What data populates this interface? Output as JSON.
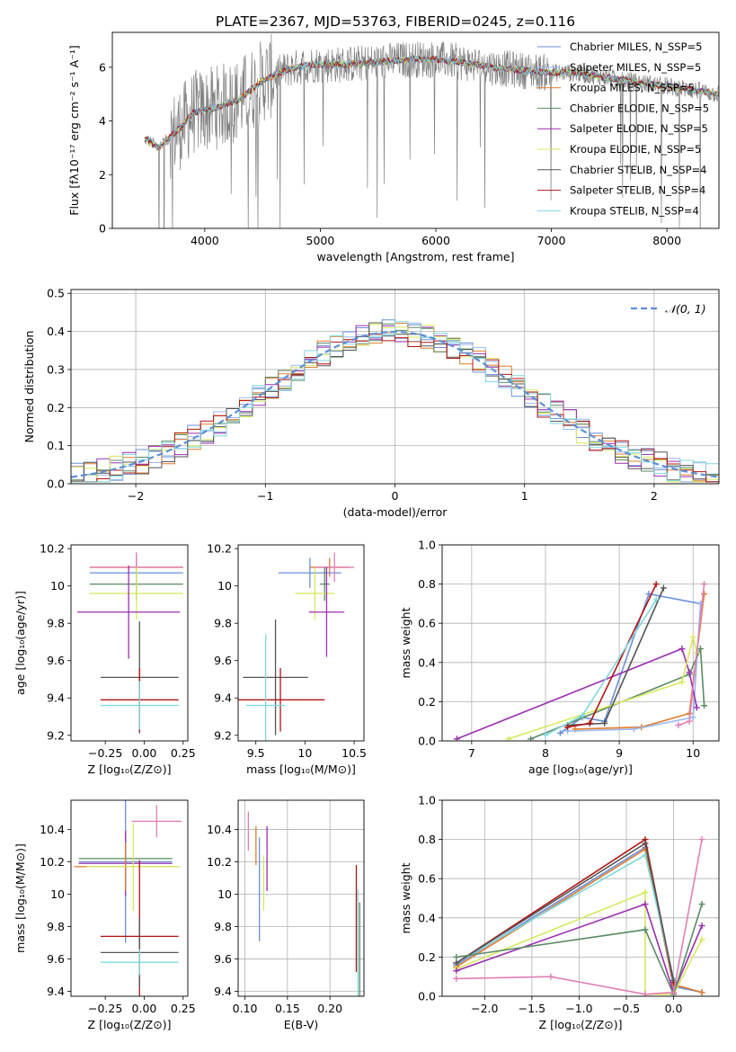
{
  "figure_title": "PLATE=2367, MJD=53763, FIBERID=0245, z=0.116",
  "colors": {
    "chabrier_miles": "#6a8fd8",
    "salpeter_miles": "#9ab8f0",
    "kroupa_miles": "#e07b2e",
    "chabrier_elodie": "#5a8a64",
    "salpeter_elodie": "#9b2fb0",
    "kroupa_elodie": "#d7e85c",
    "chabrier_stelib": "#555555",
    "salpeter_stelib": "#b01414",
    "kroupa_stelib": "#7fd8dc",
    "pink": "#e07fb4",
    "data": "#808080",
    "gaussian": "#5b8fd6",
    "grid": "#b0b0b0"
  },
  "chart_data": [
    {
      "id": "spectrum",
      "type": "line",
      "xlabel": "wavelength [Angstrom, rest frame]",
      "ylabel": "Flux [fλ10⁻¹⁷ erg cm⁻² s⁻¹ A⁻¹]",
      "xlim": [
        3200,
        8450
      ],
      "ylim": [
        0,
        7.3
      ],
      "xticks": [
        4000,
        5000,
        6000,
        7000,
        8000
      ],
      "yticks": [
        0,
        2,
        4,
        6
      ],
      "grid": false,
      "legend_position": "upper right",
      "continuum_points": [
        [
          3500,
          3.3
        ],
        [
          3600,
          3.0
        ],
        [
          3700,
          3.4
        ],
        [
          3800,
          3.8
        ],
        [
          3900,
          4.3
        ],
        [
          4000,
          4.4
        ],
        [
          4100,
          4.5
        ],
        [
          4300,
          4.8
        ],
        [
          4500,
          5.5
        ],
        [
          4700,
          5.9
        ],
        [
          4900,
          6.1
        ],
        [
          5000,
          6.1
        ],
        [
          5200,
          6.1
        ],
        [
          5500,
          6.2
        ],
        [
          5800,
          6.3
        ],
        [
          6000,
          6.3
        ],
        [
          6200,
          6.2
        ],
        [
          6500,
          6.0
        ],
        [
          6700,
          5.9
        ],
        [
          7000,
          5.8
        ],
        [
          7200,
          5.8
        ],
        [
          7500,
          5.6
        ],
        [
          7800,
          5.4
        ],
        [
          8000,
          5.3
        ],
        [
          8300,
          5.1
        ],
        [
          8450,
          5.0
        ]
      ],
      "legend_entries": [
        "Chabrier MILES, N_SSP=5",
        "Salpeter MILES, N_SSP=5",
        "Kroupa MILES, N_SSP=5",
        "Chabrier ELODIE, N_SSP=5",
        "Salpeter ELODIE, N_SSP=5",
        "Kroupa ELODIE, N_SSP=5",
        "Chabrier STELIB, N_SSP=4",
        "Salpeter STELIB, N_SSP=4",
        "Kroupa STELIB, N_SSP=4"
      ]
    },
    {
      "id": "residuals",
      "type": "line",
      "xlabel": "(data-model)/error",
      "ylabel": "Normed distribution",
      "xlim": [
        -2.5,
        2.5
      ],
      "ylim": [
        0,
        0.51
      ],
      "xticks": [
        -2,
        -1,
        0,
        1,
        2
      ],
      "yticks": [
        0.0,
        0.1,
        0.2,
        0.3,
        0.4,
        0.5
      ],
      "grid": true,
      "legend": "𝒩(0, 1)",
      "gaussian": {
        "mean": 0,
        "sigma": 1
      }
    },
    {
      "id": "age-vs-z",
      "type": "scatter",
      "xlabel": "Z [log₁₀(Z/Z⊙)]",
      "ylabel": "age  [log₁₀(age/yr)]",
      "xlim": [
        -0.47,
        0.28
      ],
      "ylim": [
        9.17,
        10.22
      ],
      "xticks": [
        -0.25,
        0.0,
        0.25
      ],
      "xticklabels": [
        "−0.25",
        "0.00",
        "0.25"
      ],
      "yticks": [
        9.2,
        9.4,
        9.6,
        9.8,
        10.0,
        10.2
      ],
      "grid": false,
      "errorbars": [
        {
          "c": "kroupa_miles",
          "x": -0.05,
          "xerr": 0.3,
          "y": 10.1,
          "yerr": 0.06
        },
        {
          "c": "chabrier_miles",
          "x": -0.05,
          "xerr": 0.3,
          "y": 10.07,
          "yerr": 0.1
        },
        {
          "c": "pink",
          "x": -0.05,
          "xerr": 0.3,
          "y": 10.1,
          "yerr": 0.08
        },
        {
          "c": "chabrier_elodie",
          "x": -0.05,
          "xerr": 0.3,
          "y": 10.01,
          "yerr": 0.09
        },
        {
          "c": "kroupa_elodie",
          "x": -0.05,
          "xerr": 0.3,
          "y": 9.96,
          "yerr": 0.14
        },
        {
          "c": "salpeter_elodie",
          "x": -0.1,
          "xerr": 0.33,
          "y": 9.86,
          "yerr": 0.25
        },
        {
          "c": "chabrier_stelib",
          "x": -0.03,
          "xerr": 0.25,
          "y": 9.51,
          "yerr": 0.3
        },
        {
          "c": "salpeter_stelib",
          "x": -0.03,
          "xerr": 0.25,
          "y": 9.39,
          "yerr": 0.17
        },
        {
          "c": "kroupa_stelib",
          "x": -0.03,
          "xerr": 0.25,
          "y": 9.36,
          "yerr": 0.13
        }
      ]
    },
    {
      "id": "age-vs-mass",
      "type": "scatter",
      "xlabel": "mass [log₁₀(M/M⊙)]",
      "xlim": [
        9.32,
        10.6
      ],
      "ylim": [
        9.17,
        10.22
      ],
      "xticks": [
        9.5,
        10.0,
        10.5
      ],
      "yticks": [
        9.2,
        9.4,
        9.6,
        9.8,
        10.0,
        10.2
      ],
      "grid": false,
      "errorbars": [
        {
          "c": "kroupa_miles",
          "x": 10.25,
          "xerr": 0.2,
          "y": 10.1,
          "yerr": 0.05
        },
        {
          "c": "chabrier_miles",
          "x": 10.05,
          "xerr": 0.32,
          "y": 10.07,
          "yerr": 0.08
        },
        {
          "c": "pink",
          "x": 10.3,
          "xerr": 0.2,
          "y": 10.1,
          "yerr": 0.08
        },
        {
          "c": "chabrier_elodie",
          "x": 10.2,
          "xerr": 0.05,
          "y": 10.01,
          "yerr": 0.09
        },
        {
          "c": "kroupa_elodie",
          "x": 10.1,
          "xerr": 0.2,
          "y": 9.96,
          "yerr": 0.14
        },
        {
          "c": "salpeter_elodie",
          "x": 10.22,
          "xerr": 0.18,
          "y": 9.86,
          "yerr": 0.24
        },
        {
          "c": "chabrier_stelib",
          "x": 9.7,
          "xerr": 0.33,
          "y": 9.51,
          "yerr": 0.31
        },
        {
          "c": "salpeter_stelib",
          "x": 9.75,
          "xerr": 0.45,
          "y": 9.39,
          "yerr": 0.17
        },
        {
          "c": "kroupa_stelib",
          "x": 9.6,
          "xerr": 0.2,
          "y": 9.36,
          "yerr": 0.38
        }
      ]
    },
    {
      "id": "mass-weight-vs-age",
      "type": "line",
      "xlabel": "age  [log₁₀(age/yr)]",
      "ylabel": "mass weight",
      "xlim": [
        6.6,
        10.35
      ],
      "ylim": [
        0,
        1.0
      ],
      "xticks": [
        7,
        8,
        9,
        10
      ],
      "yticks": [
        0.0,
        0.2,
        0.4,
        0.6,
        0.8,
        1.0
      ],
      "grid": true,
      "series": [
        {
          "c": "chabrier_miles",
          "points": [
            [
              8.2,
              0.04
            ],
            [
              8.5,
              0.12
            ],
            [
              8.8,
              0.1
            ],
            [
              9.4,
              0.75
            ],
            [
              10.1,
              0.7
            ]
          ]
        },
        {
          "c": "kroupa_miles",
          "points": [
            [
              8.4,
              0.06
            ],
            [
              9.3,
              0.07
            ],
            [
              9.95,
              0.14
            ],
            [
              10.15,
              0.75
            ]
          ]
        },
        {
          "c": "salpeter_miles",
          "points": [
            [
              8.3,
              0.05
            ],
            [
              9.2,
              0.06
            ],
            [
              10.0,
              0.12
            ],
            [
              10.1,
              0.7
            ]
          ]
        },
        {
          "c": "chabrier_elodie",
          "points": [
            [
              7.8,
              0.01
            ],
            [
              9.95,
              0.34
            ],
            [
              10.1,
              0.47
            ],
            [
              10.15,
              0.18
            ]
          ]
        },
        {
          "c": "salpeter_elodie",
          "points": [
            [
              6.8,
              0.01
            ],
            [
              9.85,
              0.47
            ],
            [
              9.95,
              0.35
            ],
            [
              10.05,
              0.17
            ]
          ]
        },
        {
          "c": "kroupa_elodie",
          "points": [
            [
              7.5,
              0.01
            ],
            [
              9.85,
              0.3
            ],
            [
              10.0,
              0.53
            ],
            [
              10.05,
              0.45
            ]
          ]
        },
        {
          "c": "chabrier_stelib",
          "points": [
            [
              8.3,
              0.08
            ],
            [
              8.8,
              0.09
            ],
            [
              9.6,
              0.78
            ]
          ]
        },
        {
          "c": "salpeter_stelib",
          "points": [
            [
              8.3,
              0.07
            ],
            [
              8.6,
              0.09
            ],
            [
              9.5,
              0.8
            ]
          ]
        },
        {
          "c": "kroupa_stelib",
          "points": [
            [
              8.0,
              0.03
            ],
            [
              8.5,
              0.13
            ],
            [
              9.5,
              0.72
            ]
          ]
        },
        {
          "c": "pink",
          "points": [
            [
              9.8,
              0.08
            ],
            [
              9.95,
              0.1
            ],
            [
              10.15,
              0.8
            ]
          ]
        }
      ]
    },
    {
      "id": "mass-vs-z",
      "type": "scatter",
      "xlabel": "Z [log₁₀(Z/Z⊙)]",
      "ylabel": "mass [log₁₀(M/M⊙)]",
      "xlim": [
        -0.47,
        0.28
      ],
      "ylim": [
        9.37,
        10.58
      ],
      "xticks": [
        -0.25,
        0.0,
        0.25
      ],
      "xticklabels": [
        "−0.25",
        "0.00",
        "0.25"
      ],
      "yticks": [
        9.4,
        9.6,
        9.8,
        10.0,
        10.2,
        10.4
      ],
      "grid": false,
      "errorbars": [
        {
          "c": "pink",
          "x": 0.08,
          "xerr": 0.16,
          "y": 10.45,
          "yerr": 0.1
        },
        {
          "c": "chabrier_elodie",
          "x": -0.12,
          "xerr": 0.3,
          "y": 10.22,
          "yerr": 0.18
        },
        {
          "c": "chabrier_miles",
          "x": -0.12,
          "xerr": 0.3,
          "y": 10.2,
          "yerr": 0.5
        },
        {
          "c": "salpeter_elodie",
          "x": -0.12,
          "xerr": 0.3,
          "y": 10.19,
          "yerr": 0.2
        },
        {
          "c": "kroupa_miles",
          "x": -0.12,
          "xerr": 0.33,
          "y": 10.17,
          "yerr": 0.15
        },
        {
          "c": "kroupa_elodie",
          "x": -0.07,
          "xerr": 0.3,
          "y": 10.17,
          "yerr": 0.27
        },
        {
          "c": "salpeter_stelib",
          "x": -0.03,
          "xerr": 0.25,
          "y": 9.74,
          "yerr": 0.47
        },
        {
          "c": "chabrier_stelib",
          "x": -0.03,
          "xerr": 0.25,
          "y": 9.64,
          "yerr": 0.22
        },
        {
          "c": "kroupa_stelib",
          "x": -0.03,
          "xerr": 0.25,
          "y": 9.58,
          "yerr": 0.08
        }
      ]
    },
    {
      "id": "mass-vs-ebv",
      "type": "scatter",
      "xlabel": "E(B-V)",
      "xlim": [
        0.092,
        0.24
      ],
      "ylim": [
        9.37,
        10.58
      ],
      "xticks": [
        0.1,
        0.15,
        0.2
      ],
      "xticklabels": [
        "0.10",
        "0.15",
        "0.20"
      ],
      "yticks": [
        9.4,
        9.6,
        9.8,
        10.0,
        10.2,
        10.4
      ],
      "grid": true,
      "errorbars": [
        {
          "c": "pink",
          "x": 0.104,
          "y": 10.39,
          "yerr": 0.12
        },
        {
          "c": "kroupa_miles",
          "x": 0.113,
          "y": 10.3,
          "yerr": 0.12
        },
        {
          "c": "chabrier_miles",
          "x": 0.117,
          "y": 10.03,
          "yerr": 0.32
        },
        {
          "c": "kroupa_elodie",
          "x": 0.122,
          "y": 10.07,
          "yerr": 0.17
        },
        {
          "c": "salpeter_elodie",
          "x": 0.126,
          "y": 10.22,
          "yerr": 0.2
        },
        {
          "c": "salpeter_stelib",
          "x": 0.231,
          "y": 9.85,
          "yerr": 0.33
        },
        {
          "c": "kroupa_stelib",
          "x": 0.233,
          "y": 9.7,
          "yerr": 0.33
        },
        {
          "c": "chabrier_elodie",
          "x": 0.235,
          "y": 9.65,
          "yerr": 0.3
        }
      ]
    },
    {
      "id": "mass-weight-vs-z",
      "type": "line",
      "xlabel": "Z [log₁₀(Z/Z⊙)]",
      "ylabel": "mass weight",
      "xlim": [
        -2.45,
        0.48
      ],
      "ylim": [
        0,
        1.0
      ],
      "xticks": [
        -2.0,
        -1.5,
        -1.0,
        -0.5,
        0.0
      ],
      "xticklabels": [
        "−2.0",
        "−1.5",
        "−1.0",
        "−0.5",
        "0.0"
      ],
      "yticks": [
        0.0,
        0.2,
        0.4,
        0.6,
        0.8,
        1.0
      ],
      "grid": true,
      "series": [
        {
          "c": "chabrier_miles",
          "points": [
            [
              -2.3,
              0.16
            ],
            [
              -0.3,
              0.76
            ],
            [
              0.0,
              0.05
            ],
            [
              0.3,
              0.02
            ]
          ]
        },
        {
          "c": "kroupa_miles",
          "points": [
            [
              -2.3,
              0.15
            ],
            [
              -0.3,
              0.75
            ],
            [
              0.0,
              0.06
            ],
            [
              0.3,
              0.02
            ]
          ]
        },
        {
          "c": "salpeter_stelib",
          "points": [
            [
              -2.3,
              0.17
            ],
            [
              -0.3,
              0.8
            ],
            [
              0.0,
              0.07
            ]
          ]
        },
        {
          "c": "kroupa_stelib",
          "points": [
            [
              -2.3,
              0.17
            ],
            [
              -0.3,
              0.72
            ],
            [
              0.0,
              0.09
            ]
          ]
        },
        {
          "c": "chabrier_stelib",
          "points": [
            [
              -2.3,
              0.17
            ],
            [
              -0.3,
              0.78
            ],
            [
              0.0,
              0.08
            ]
          ]
        },
        {
          "c": "kroupa_elodie",
          "points": [
            [
              -2.3,
              0.14
            ],
            [
              -0.3,
              0.53
            ],
            [
              -0.3,
              0.01
            ],
            [
              0.0,
              0.01
            ],
            [
              0.3,
              0.29
            ]
          ]
        },
        {
          "c": "salpeter_elodie",
          "points": [
            [
              -2.3,
              0.13
            ],
            [
              -0.3,
              0.47
            ],
            [
              0.0,
              0.02
            ],
            [
              0.3,
              0.36
            ]
          ]
        },
        {
          "c": "chabrier_elodie",
          "points": [
            [
              -2.3,
              0.2
            ],
            [
              -0.3,
              0.34
            ],
            [
              0.0,
              0.01
            ],
            [
              0.3,
              0.47
            ]
          ]
        },
        {
          "c": "pink",
          "points": [
            [
              -2.3,
              0.09
            ],
            [
              -1.3,
              0.1
            ],
            [
              -0.3,
              0.01
            ],
            [
              0.0,
              0.02
            ],
            [
              0.3,
              0.8
            ]
          ]
        }
      ]
    }
  ]
}
